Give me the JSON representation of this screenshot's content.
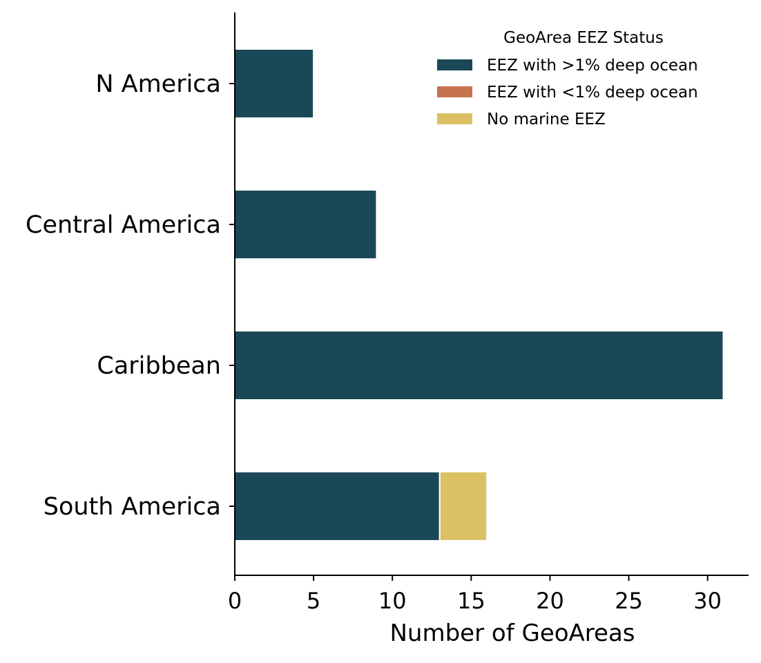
{
  "chart_data": {
    "type": "bar",
    "orientation": "horizontal",
    "stacked": true,
    "categories": [
      "N America",
      "Central America",
      "Caribbean",
      "South America"
    ],
    "series": [
      {
        "name": "EEZ with >1% deep ocean",
        "values": [
          5,
          9,
          31,
          13
        ],
        "color": "#1b4857"
      },
      {
        "name": "EEZ with <1% deep ocean",
        "values": [
          0,
          0,
          0,
          0
        ],
        "color": "#c6744e"
      },
      {
        "name": "No marine EEZ",
        "values": [
          0,
          0,
          0,
          3
        ],
        "color": "#dbc163"
      }
    ],
    "xlabel": "Number of GeoAreas",
    "ylabel": "",
    "xlim": [
      0,
      32.6
    ],
    "xticks": [
      0,
      5,
      10,
      15,
      20,
      25,
      30
    ],
    "legend": {
      "title": "GeoArea EEZ Status",
      "position": "top-right"
    },
    "grid": false
  }
}
